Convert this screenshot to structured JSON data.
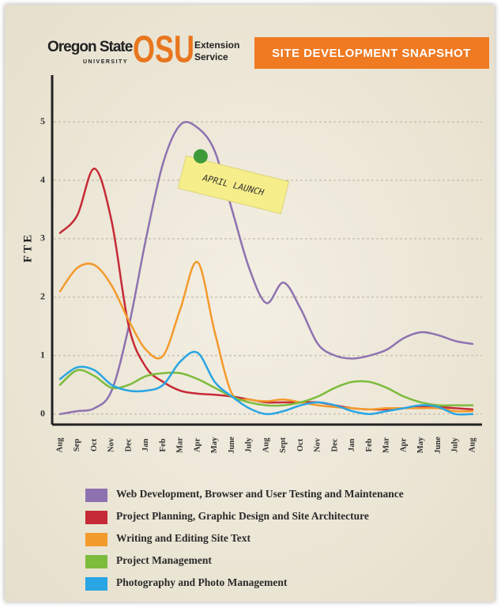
{
  "logo": {
    "name": "Oregon State",
    "sub": "UNIVERSITY",
    "mark": "OSU",
    "line1": "Extension",
    "line2": "Service"
  },
  "chart_data": {
    "type": "line",
    "title": "SITE DEVELOPMENT SNAPSHOT",
    "y_label": "FTE",
    "annotation": "APRIL LAUNCH",
    "categories": [
      "Aug",
      "Sep",
      "Oct",
      "Nov",
      "Dec",
      "Jan",
      "Feb",
      "Mar",
      "Apr",
      "May",
      "June",
      "July",
      "Aug",
      "Sept",
      "Oct",
      "Nov",
      "Dec",
      "Jan",
      "Feb",
      "Mar",
      "Apr",
      "May",
      "June",
      "July",
      "Aug"
    ],
    "ylim": [
      -0.18,
      5.8
    ],
    "yticks": [
      0,
      1,
      2,
      3,
      4,
      5
    ],
    "grid": true,
    "series": [
      {
        "name": "Web Development, Browser and User Testing and Maintenance",
        "color": "#8e72b0",
        "values": [
          0,
          0.05,
          0.1,
          0.4,
          1.5,
          3.0,
          4.3,
          4.95,
          4.9,
          4.5,
          3.5,
          2.5,
          1.9,
          2.25,
          1.8,
          1.2,
          1.0,
          0.95,
          1.0,
          1.1,
          1.3,
          1.4,
          1.35,
          1.25,
          1.2
        ]
      },
      {
        "name": "Project Planning, Graphic Design and Site Architecture",
        "color": "#c62a36",
        "values": [
          3.1,
          3.4,
          4.2,
          3.3,
          1.5,
          0.8,
          0.55,
          0.4,
          0.35,
          0.33,
          0.3,
          0.25,
          0.2,
          0.2,
          0.2,
          0.2,
          0.15,
          0.1,
          0.08,
          0.08,
          0.1,
          0.12,
          0.12,
          0.1,
          0.08
        ]
      },
      {
        "name": "Writing and Editing Site Text",
        "color": "#f39a2c",
        "values": [
          2.1,
          2.5,
          2.55,
          2.2,
          1.6,
          1.1,
          1.0,
          1.8,
          2.6,
          1.4,
          0.35,
          0.25,
          0.22,
          0.25,
          0.2,
          0.15,
          0.12,
          0.1,
          0.08,
          0.1,
          0.1,
          0.1,
          0.1,
          0.05,
          0.05
        ]
      },
      {
        "name": "Project Management",
        "color": "#7dbb3c",
        "values": [
          0.5,
          0.75,
          0.65,
          0.45,
          0.5,
          0.65,
          0.7,
          0.7,
          0.6,
          0.45,
          0.3,
          0.2,
          0.15,
          0.15,
          0.2,
          0.3,
          0.45,
          0.55,
          0.55,
          0.45,
          0.3,
          0.2,
          0.15,
          0.15,
          0.15
        ]
      },
      {
        "name": "Photography and Photo Management",
        "color": "#2aa5e3",
        "values": [
          0.6,
          0.8,
          0.75,
          0.5,
          0.4,
          0.4,
          0.5,
          0.9,
          1.05,
          0.55,
          0.3,
          0.1,
          0,
          0.05,
          0.15,
          0.2,
          0.15,
          0.05,
          0,
          0.05,
          0.1,
          0.15,
          0.12,
          0,
          0
        ]
      }
    ]
  }
}
